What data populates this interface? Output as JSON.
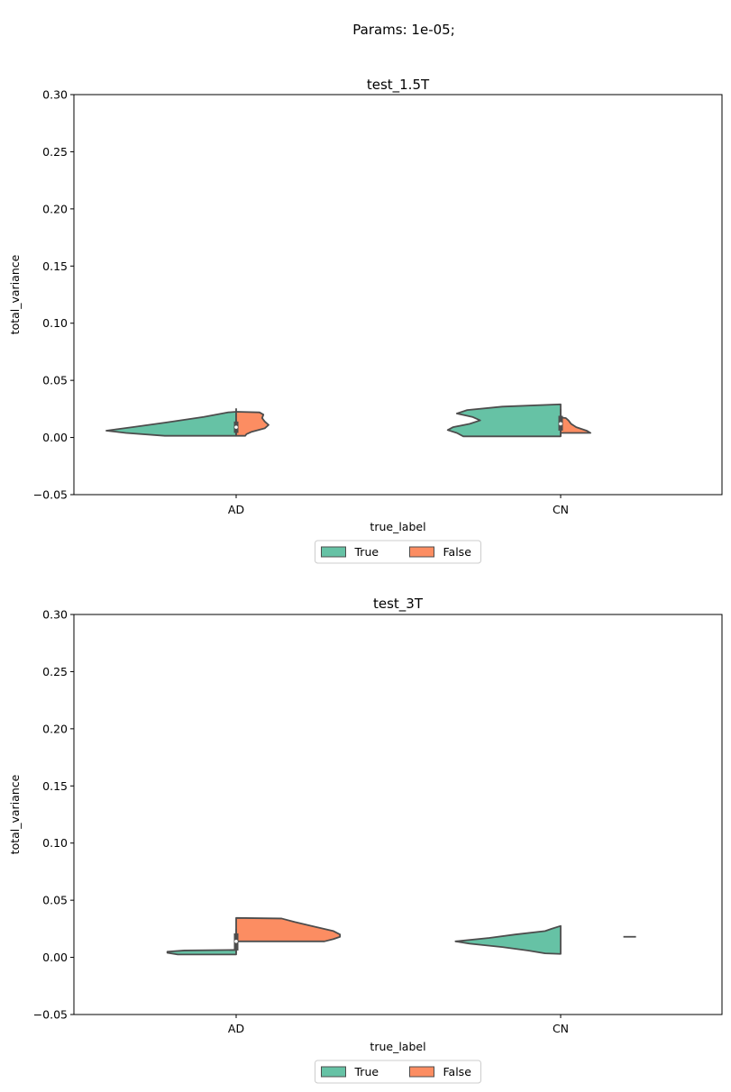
{
  "figure": {
    "suptitle": "Params: 1e-05;"
  },
  "colors": {
    "true": "#66c2a5",
    "false": "#fc8d62",
    "edge": "#4d4d4d",
    "box": "#4d4d4d"
  },
  "chart_data": [
    {
      "type": "violin",
      "title": "test_1.5T",
      "xlabel": "true_label",
      "ylabel": "total_variance",
      "categories": [
        "AD",
        "CN"
      ],
      "ylim": [
        -0.05,
        0.3
      ],
      "yticks": [
        -0.05,
        0.0,
        0.05,
        0.1,
        0.15,
        0.2,
        0.25,
        0.3
      ],
      "ytick_labels": [
        "−0.05",
        "0.00",
        "0.05",
        "0.10",
        "0.15",
        "0.20",
        "0.25",
        "0.30"
      ],
      "split": true,
      "legend": {
        "position": "bottom-center",
        "entries": [
          "True",
          "False"
        ]
      },
      "series": [
        {
          "name": "True",
          "violins": [
            {
              "category": "AD",
              "profile": [
                [
                  0.0015,
                  0.55
                ],
                [
                  0.004,
                  0.85
                ],
                [
                  0.006,
                  1.0
                ],
                [
                  0.009,
                  0.8
                ],
                [
                  0.013,
                  0.55
                ],
                [
                  0.018,
                  0.25
                ],
                [
                  0.022,
                  0.06
                ],
                [
                  0.0225,
                  0.0
                ],
                [
                  0.025,
                  0.0
                ]
              ]
            },
            {
              "category": "CN",
              "profile": [
                [
                  0.001,
                  0.75
                ],
                [
                  0.004,
                  0.8
                ],
                [
                  0.0065,
                  0.87
                ],
                [
                  0.009,
                  0.83
                ],
                [
                  0.012,
                  0.7
                ],
                [
                  0.015,
                  0.62
                ],
                [
                  0.018,
                  0.68
                ],
                [
                  0.021,
                  0.8
                ],
                [
                  0.024,
                  0.72
                ],
                [
                  0.027,
                  0.45
                ],
                [
                  0.029,
                  0.0
                ]
              ]
            }
          ]
        },
        {
          "name": "False",
          "violins": [
            {
              "category": "AD",
              "profile": [
                [
                  0.0015,
                  0.07
                ],
                [
                  0.003,
                  0.08
                ],
                [
                  0.005,
                  0.12
                ],
                [
                  0.008,
                  0.22
                ],
                [
                  0.011,
                  0.25
                ],
                [
                  0.014,
                  0.22
                ],
                [
                  0.017,
                  0.2
                ],
                [
                  0.02,
                  0.21
                ],
                [
                  0.022,
                  0.18
                ],
                [
                  0.0225,
                  0.0
                ]
              ]
            },
            {
              "category": "CN",
              "profile": [
                [
                  0.004,
                  0.23
                ],
                [
                  0.006,
                  0.2
                ],
                [
                  0.009,
                  0.12
                ],
                [
                  0.012,
                  0.08
                ],
                [
                  0.015,
                  0.06
                ],
                [
                  0.017,
                  0.04
                ],
                [
                  0.0175,
                  0.0
                ]
              ]
            }
          ]
        }
      ],
      "boxes": [
        {
          "category": "AD",
          "median": 0.009,
          "q1": 0.004,
          "q3": 0.014,
          "whisker_low": 0.0015,
          "whisker_high": 0.016
        },
        {
          "category": "CN",
          "median": 0.012,
          "q1": 0.006,
          "q3": 0.019,
          "whisker_low": 0.001,
          "whisker_high": 0.025
        }
      ]
    },
    {
      "type": "violin",
      "title": "test_3T",
      "xlabel": "true_label",
      "ylabel": "total_variance",
      "categories": [
        "AD",
        "CN"
      ],
      "ylim": [
        -0.05,
        0.3
      ],
      "yticks": [
        -0.05,
        0.0,
        0.05,
        0.1,
        0.15,
        0.2,
        0.25,
        0.3
      ],
      "ytick_labels": [
        "−0.05",
        "0.00",
        "0.05",
        "0.10",
        "0.15",
        "0.20",
        "0.25",
        "0.30"
      ],
      "split": true,
      "legend": {
        "position": "bottom-center",
        "entries": [
          "True",
          "False"
        ]
      },
      "series": [
        {
          "name": "True",
          "violins": [
            {
              "category": "AD",
              "profile": [
                [
                  0.0025,
                  0.45
                ],
                [
                  0.004,
                  0.53
                ],
                [
                  0.005,
                  0.53
                ],
                [
                  0.006,
                  0.4
                ],
                [
                  0.0065,
                  0.0
                ]
              ]
            },
            {
              "category": "CN",
              "profile": [
                [
                  0.003,
                  0.0
                ],
                [
                  0.0035,
                  0.12
                ],
                [
                  0.006,
                  0.25
                ],
                [
                  0.009,
                  0.45
                ],
                [
                  0.012,
                  0.7
                ],
                [
                  0.014,
                  0.81
                ],
                [
                  0.017,
                  0.55
                ],
                [
                  0.02,
                  0.35
                ],
                [
                  0.023,
                  0.12
                ],
                [
                  0.025,
                  0.07
                ],
                [
                  0.0275,
                  0.0
                ]
              ]
            }
          ]
        },
        {
          "name": "False",
          "violins": [
            {
              "category": "AD",
              "profile": [
                [
                  0.014,
                  0.68
                ],
                [
                  0.016,
                  0.75
                ],
                [
                  0.018,
                  0.8
                ],
                [
                  0.02,
                  0.8
                ],
                [
                  0.023,
                  0.75
                ],
                [
                  0.027,
                  0.6
                ],
                [
                  0.031,
                  0.45
                ],
                [
                  0.034,
                  0.35
                ],
                [
                  0.0345,
                  0.0
                ]
              ]
            }
          ]
        }
      ],
      "false_marks": [
        {
          "x_offset_fraction": 0.42,
          "value": 0.018
        }
      ],
      "boxes": [
        {
          "category": "AD",
          "median": 0.014,
          "q1": 0.006,
          "q3": 0.021,
          "whisker_low": 0.0035,
          "whisker_high": 0.025
        }
      ]
    }
  ]
}
